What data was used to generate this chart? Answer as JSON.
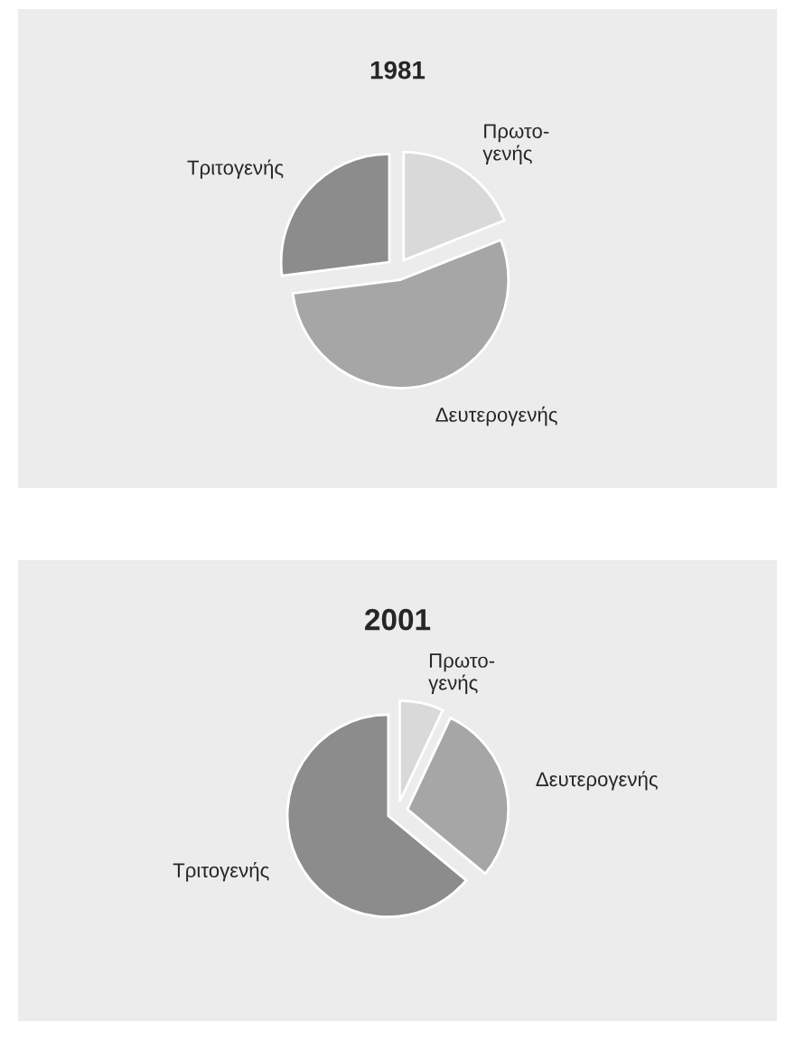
{
  "chart_data": [
    {
      "type": "pie",
      "title": "1981",
      "categories": [
        "Πρωτο-\nγενής",
        "Δευτερογενής",
        "Τριτογενής"
      ],
      "values": [
        19,
        54,
        27
      ],
      "colors": [
        "#d9d9d9",
        "#a6a6a6",
        "#8c8c8c"
      ]
    },
    {
      "type": "pie",
      "title": "2001",
      "categories": [
        "Πρωτο-\nγενής",
        "Δευτερογενής",
        "Τριτογενής"
      ],
      "values": [
        7,
        29,
        64
      ],
      "colors": [
        "#d9d9d9",
        "#a6a6a6",
        "#8c8c8c"
      ]
    }
  ]
}
